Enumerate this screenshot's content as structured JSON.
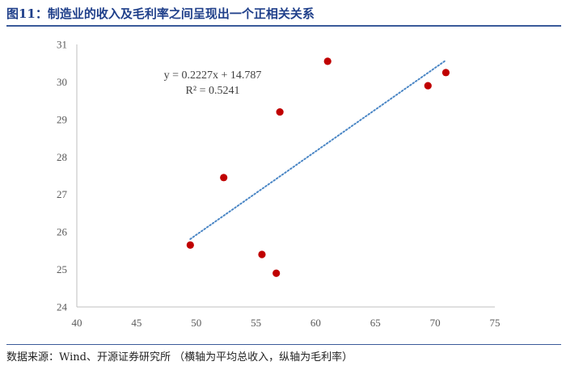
{
  "header": {
    "title": "图11：制造业的收入及毛利率之间呈现出一个正相关关系"
  },
  "footer": {
    "source": "数据来源：Wind、开源证券研究所 （横轴为平均总收入，纵轴为毛利率）"
  },
  "chart_data": {
    "type": "scatter",
    "x": [
      49.5,
      52.3,
      55.5,
      56.7,
      57.0,
      61.0,
      69.4,
      70.9
    ],
    "y": [
      25.65,
      27.45,
      25.4,
      24.9,
      29.2,
      30.55,
      29.9,
      30.25
    ],
    "xlim": [
      40,
      75
    ],
    "ylim": [
      24,
      31
    ],
    "x_ticks": [
      "40",
      "45",
      "50",
      "55",
      "60",
      "65",
      "70",
      "75"
    ],
    "y_ticks": [
      "24",
      "25",
      "26",
      "27",
      "28",
      "29",
      "30",
      "31"
    ],
    "trendline": {
      "type": "linear",
      "slope": 0.2227,
      "intercept": 14.787,
      "x_range": [
        49.5,
        70.9
      ],
      "equation": "y = 0.2227x + 14.787",
      "r_squared": "R² = 0.5241"
    },
    "point_color": "#c00000",
    "trend_color": "#4a86c5",
    "grid": false,
    "legend": "none"
  }
}
